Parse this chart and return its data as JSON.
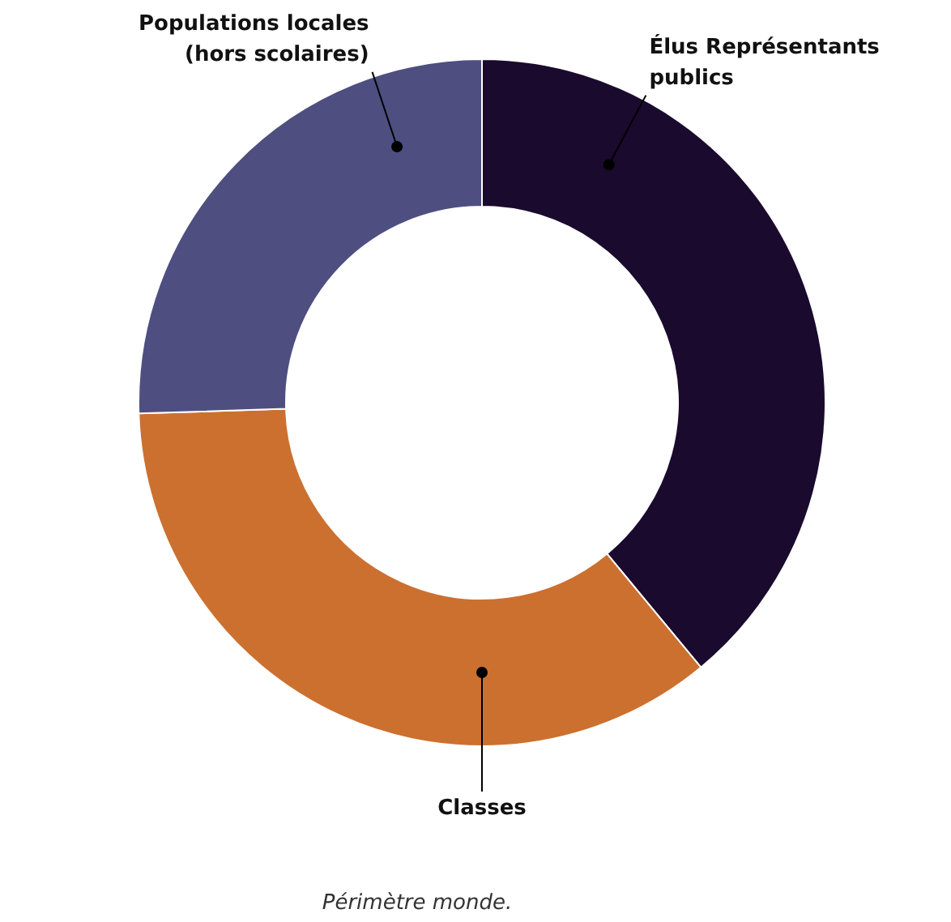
{
  "chart_data": {
    "type": "donut",
    "categories": [
      "Élus Représentants publics",
      "Classes",
      "Populations locales (hors scolaires)"
    ],
    "values": [
      39,
      35.5,
      25.5
    ],
    "colors": [
      "#1a0a2e",
      "#cc7030",
      "#4f4e80"
    ],
    "annotations": [
      "Périmètre monde."
    ]
  }
}
